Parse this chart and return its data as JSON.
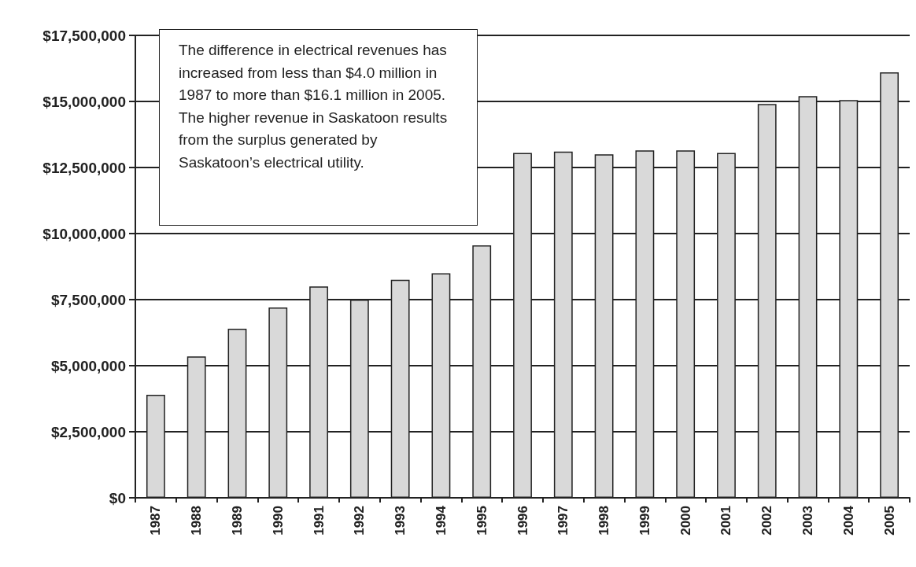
{
  "chart_data": {
    "type": "bar",
    "categories": [
      "1987",
      "1988",
      "1989",
      "1990",
      "1991",
      "1992",
      "1993",
      "1994",
      "1995",
      "1996",
      "1997",
      "1998",
      "1999",
      "2000",
      "2001",
      "2002",
      "2003",
      "2004",
      "2005"
    ],
    "values": [
      3900000,
      5350000,
      6400000,
      7200000,
      8000000,
      7500000,
      8250000,
      8500000,
      9550000,
      13050000,
      13100000,
      13000000,
      13150000,
      13150000,
      13050000,
      14900000,
      15200000,
      15050000,
      16100000
    ],
    "color": "#d9d9d9",
    "ylim": [
      0,
      17500000
    ],
    "yticks": [
      {
        "value": 0,
        "label": "$0"
      },
      {
        "value": 2500000,
        "label": "$2,500,000"
      },
      {
        "value": 5000000,
        "label": "$5,000,000"
      },
      {
        "value": 7500000,
        "label": "$7,500,000"
      },
      {
        "value": 10000000,
        "label": "$10,000,000"
      },
      {
        "value": 12500000,
        "label": "$12,500,000"
      },
      {
        "value": 15000000,
        "label": "$15,000,000"
      },
      {
        "value": 17500000,
        "label": "$17,500,000"
      }
    ],
    "grid": true,
    "annotations": [
      "The difference in electrical revenues has increased from less than $4.0 million in 1987 to more than $16.1 million in 2005.  The higher revenue in Saskatoon results from the surplus generated by Saskatoon’s electrical utility."
    ]
  }
}
